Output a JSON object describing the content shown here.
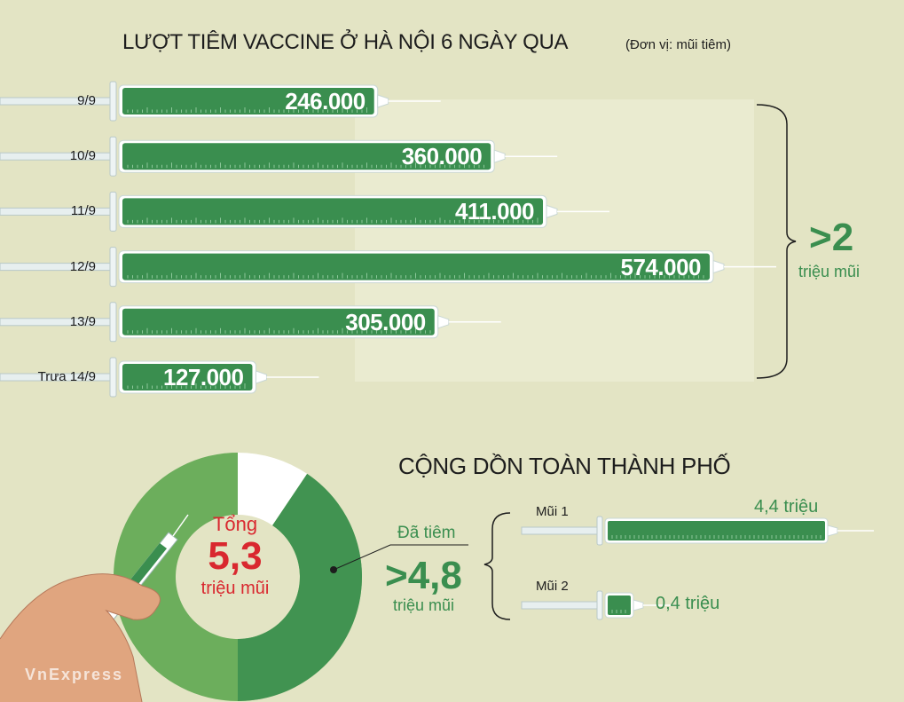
{
  "header": {
    "title": "LƯỢT TIÊM VACCINE Ở HÀ NỘI 6 NGÀY QUA",
    "unit_note": "(Đơn vị: mũi tiêm)"
  },
  "chart_data": [
    {
      "type": "bar",
      "orientation": "horizontal",
      "title": "LƯỢT TIÊM VACCINE Ở HÀ NỘI 6 NGÀY QUA",
      "categories": [
        "9/9",
        "10/9",
        "11/9",
        "12/9",
        "13/9",
        "Trưa 14/9"
      ],
      "values": [
        246000,
        360000,
        411000,
        574000,
        305000,
        127000
      ],
      "value_labels": [
        "246.000",
        "360.000",
        "411.000",
        "574.000",
        "305.000",
        "127.000"
      ],
      "xlim": [
        0,
        574000
      ],
      "color": "#3a8e4f"
    },
    {
      "type": "pie",
      "title": "CỘNG DỒN TOÀN THÀNH PHỐ",
      "labels": [
        "Đã tiêm",
        ""
      ],
      "values": [
        4.8,
        0.5
      ],
      "colors": [
        "#4c9b54",
        "#ffffff"
      ]
    },
    {
      "type": "bar",
      "orientation": "horizontal",
      "categories": [
        "Mũi 1",
        "Mũi 2"
      ],
      "values": [
        4.4,
        0.4
      ],
      "value_labels": [
        "4,4 triệu",
        "0,4 triệu"
      ],
      "xlim": [
        0,
        4.4
      ],
      "color": "#3a8e4f"
    }
  ],
  "summary": {
    "gt_value": ">2",
    "gt_unit": "triệu mũi"
  },
  "cumulative": {
    "title": "CỘNG DỒN TOÀN THÀNH PHỐ",
    "total_label": "Tổng",
    "total_value": "5,3",
    "total_unit": "triệu mũi",
    "injected_label": "Đã tiêm",
    "injected_value": ">4,8",
    "injected_unit": "triệu mũi"
  },
  "brand": {
    "logo_text": "VnExpress"
  },
  "colors": {
    "background": "#e3e4c4",
    "bar_green": "#3a8e4f",
    "accent_red": "#d9282f",
    "donut_light": "#6cae5c"
  }
}
